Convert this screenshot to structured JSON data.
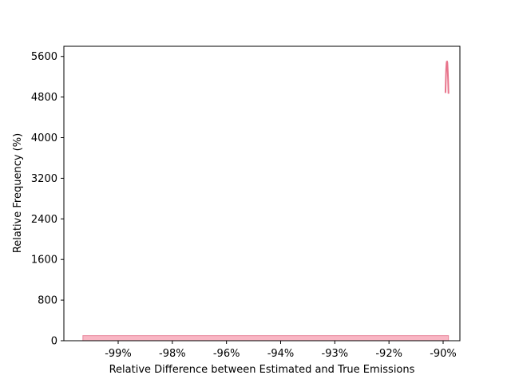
{
  "chart_data": {
    "type": "bar",
    "xlabel": "Relative Difference between Estimated and True Emissions",
    "ylabel": "Relative Frequency (%)",
    "x_tick_labels": [
      "-99%",
      "-98%",
      "-96%",
      "-94%",
      "-93%",
      "-92%",
      "-90%"
    ],
    "y_ticks": [
      0,
      800,
      1600,
      2400,
      3200,
      4000,
      4800,
      5600
    ],
    "ylim": [
      0,
      5800
    ],
    "xlim": [
      -100.1,
      -89.7
    ],
    "grid": false,
    "colors": {
      "bar_fill": "#f9b6c4",
      "bar_edge": "#e8889d",
      "curve": "#e8758c"
    },
    "histogram": {
      "x_start": -99.6,
      "x_end": -90.0,
      "value": 100
    },
    "density_curve": {
      "x": [
        -90.08,
        -90.07,
        -90.06,
        -90.05,
        -90.04,
        -90.03,
        -90.02,
        -90.01,
        -90.0,
        -89.99,
        -89.98
      ],
      "y": [
        4880,
        5150,
        5350,
        5470,
        5510,
        5480,
        5350,
        5150,
        4880,
        4880,
        4880
      ]
    }
  }
}
